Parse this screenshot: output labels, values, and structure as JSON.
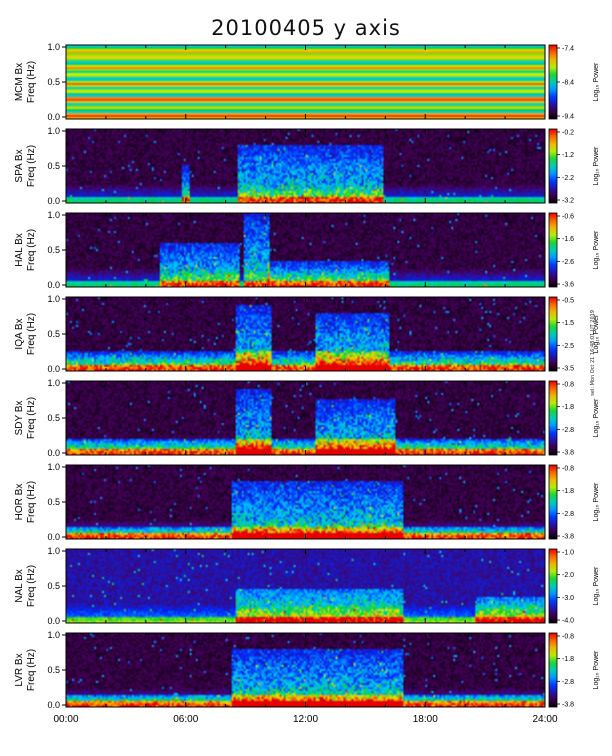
{
  "chart_data": {
    "type": "heatmap",
    "title": "20100405 y axis",
    "xlabel": "",
    "x_ticks": [
      "00:00",
      "06:00",
      "12:00",
      "18:00",
      "24:00"
    ],
    "x_range_hours": [
      0,
      24
    ],
    "y_ticks": [
      "0.0",
      "0.5",
      "1.0"
    ],
    "y_range_hz": [
      0,
      1
    ],
    "colorbar_label": "Log₁₀ Power",
    "colormap": "rainbow",
    "panels": [
      {
        "station": "MCM",
        "ylabel_top": "MCM Bx",
        "ylabel_bottom": "Freq (Hz)",
        "colorbar_ticks": [
          "-7.4",
          "-8.4",
          "-9.4"
        ],
        "range": [
          -10,
          -7.4
        ],
        "pattern": "stripes",
        "active": []
      },
      {
        "station": "SPA",
        "ylabel_top": "SPA Bx",
        "ylabel_bottom": "Freq (Hz)",
        "colorbar_ticks": [
          "-0.2",
          "-1.2",
          "-2.2",
          "-3.2"
        ],
        "range": [
          -3.2,
          -0.2
        ],
        "pattern": "noise",
        "active": [
          [
            8.6,
            15.8,
            0.8
          ],
          [
            5.8,
            6.2,
            0.5
          ]
        ]
      },
      {
        "station": "HAL",
        "ylabel_top": "HAL Bx",
        "ylabel_bottom": "Freq (Hz)",
        "colorbar_ticks": [
          "-0.6",
          "-1.6",
          "-2.6",
          "-3.6"
        ],
        "range": [
          -3.6,
          -0.6
        ],
        "pattern": "noise",
        "active": [
          [
            4.7,
            8.6,
            0.6
          ],
          [
            8.9,
            10.1,
            1.0
          ],
          [
            10.1,
            16.1,
            0.35
          ]
        ]
      },
      {
        "station": "IQA",
        "ylabel_top": "IQA Bx",
        "ylabel_bottom": "Freq (Hz)",
        "colorbar_ticks": [
          "-0.5",
          "-1.5",
          "-2.5",
          "-3.5"
        ],
        "range": [
          -3.5,
          -0.5
        ],
        "pattern": "noise",
        "active": [
          [
            8.4,
            10.2,
            0.9
          ],
          [
            12.5,
            16.2,
            0.8
          ],
          [
            0,
            24,
            0.25
          ]
        ]
      },
      {
        "station": "SDY",
        "ylabel_top": "SDY Bx",
        "ylabel_bottom": "Freq (Hz)",
        "colorbar_ticks": [
          "-0.8",
          "-1.8",
          "-2.8",
          "-3.8"
        ],
        "range": [
          -3.8,
          -0.8
        ],
        "pattern": "noise",
        "active": [
          [
            8.4,
            10.2,
            0.9
          ],
          [
            12.5,
            16.4,
            0.75
          ],
          [
            0,
            24,
            0.2
          ]
        ]
      },
      {
        "station": "HOR",
        "ylabel_top": "HOR Bx",
        "ylabel_bottom": "Freq (Hz)",
        "colorbar_ticks": [
          "-0.8",
          "-1.8",
          "-2.8",
          "-3.8"
        ],
        "range": [
          -3.8,
          -0.8
        ],
        "pattern": "noise",
        "active": [
          [
            8.3,
            16.8,
            0.8
          ],
          [
            0,
            24,
            0.15
          ]
        ]
      },
      {
        "station": "NAL",
        "ylabel_top": "NAL Bx",
        "ylabel_bottom": "Freq (Hz)",
        "colorbar_ticks": [
          "-1.0",
          "-2.0",
          "-3.0",
          "-4.0"
        ],
        "range": [
          -4.0,
          -1.0
        ],
        "pattern": "noise-purple",
        "active": [
          [
            8.4,
            16.8,
            0.45
          ],
          [
            20.5,
            24,
            0.35
          ]
        ]
      },
      {
        "station": "LVR",
        "ylabel_top": "LVR Bx",
        "ylabel_bottom": "Freq (Hz)",
        "colorbar_ticks": [
          "-0.8",
          "-1.8",
          "-2.8",
          "-3.8"
        ],
        "range": [
          -3.8,
          -0.8
        ],
        "pattern": "noise",
        "active": [
          [
            8.3,
            16.8,
            0.8
          ],
          [
            0,
            24,
            0.15
          ]
        ]
      }
    ],
    "side_note": "sel: Mon Oct 21 16:48:01 UT 2019"
  }
}
